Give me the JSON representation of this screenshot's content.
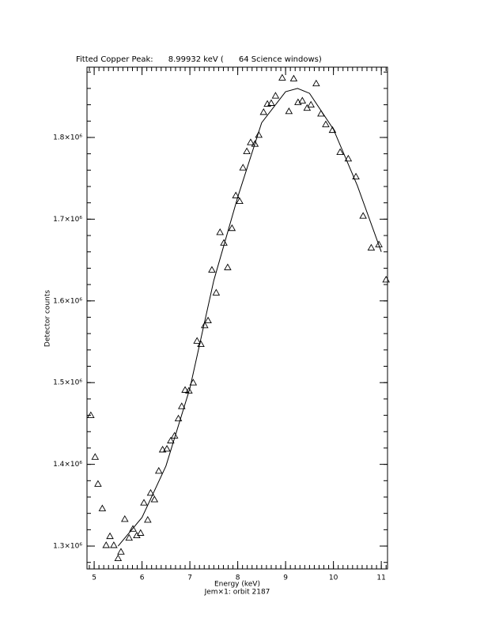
{
  "chart_data": {
    "type": "scatter",
    "title": "Fitted Copper Peak:      8.99932 keV (      64 Science windows)",
    "x_label": "Energy (keV)",
    "subtitle": "Jem×1: orbit 2187",
    "y_label": "Detector counts",
    "xlim": [
      4.85,
      11.13
    ],
    "ylim": [
      1272000,
      1886000
    ],
    "xticks": [
      5,
      6,
      7,
      8,
      9,
      10,
      11
    ],
    "yticks": [
      {
        "value": 1300000,
        "label": "1.3×10⁶"
      },
      {
        "value": 1400000,
        "label": "1.4×10⁶"
      },
      {
        "value": 1500000,
        "label": "1.5×10⁶"
      },
      {
        "value": 1600000,
        "label": "1.6×10⁶"
      },
      {
        "value": 1700000,
        "label": "1.7×10⁶"
      },
      {
        "value": 1800000,
        "label": "1.8×10⁶"
      }
    ],
    "series": [
      {
        "type": "scatter",
        "marker": "triangle",
        "color": "#000000",
        "x": [
          4.93,
          5.02,
          5.08,
          5.17,
          5.25,
          5.33,
          5.41,
          5.5,
          5.56,
          5.64,
          5.73,
          5.81,
          5.89,
          5.97,
          6.04,
          6.12,
          6.18,
          6.26,
          6.35,
          6.43,
          6.52,
          6.6,
          6.68,
          6.76,
          6.83,
          6.9,
          6.98,
          7.07,
          7.15,
          7.23,
          7.31,
          7.38,
          7.46,
          7.55,
          7.63,
          7.71,
          7.79,
          7.88,
          7.96,
          8.04,
          8.11,
          8.19,
          8.27,
          8.36,
          8.44,
          8.54,
          8.62,
          8.7,
          8.79,
          8.93,
          9.07,
          9.17,
          9.26,
          9.35,
          9.45,
          9.53,
          9.64,
          9.74,
          9.84,
          9.98,
          10.14,
          10.31,
          10.47,
          10.62,
          10.79,
          10.95,
          11.1
        ],
        "values": [
          1460000,
          1409000,
          1376000,
          1346000,
          1301000,
          1312000,
          1301000,
          1285000,
          1293000,
          1333000,
          1310000,
          1321000,
          1313000,
          1316000,
          1353000,
          1332000,
          1365000,
          1357000,
          1392000,
          1418000,
          1419000,
          1429000,
          1435000,
          1456000,
          1471000,
          1491000,
          1490000,
          1500000,
          1551000,
          1547000,
          1570000,
          1576000,
          1638000,
          1610000,
          1684000,
          1671000,
          1641000,
          1689000,
          1729000,
          1722000,
          1763000,
          1783000,
          1794000,
          1792000,
          1803000,
          1831000,
          1841000,
          1842000,
          1851000,
          1873000,
          1832000,
          1872000,
          1843000,
          1845000,
          1836000,
          1840000,
          1866000,
          1829000,
          1816000,
          1809000,
          1782000,
          1774000,
          1752000,
          1704000,
          1665000,
          1669000,
          1626000
        ]
      },
      {
        "type": "line",
        "color": "#000000",
        "x": [
          5.5,
          6.0,
          6.5,
          7.0,
          7.5,
          8.0,
          8.5,
          9.0,
          9.25,
          9.5,
          10.0,
          10.5,
          11.0
        ],
        "values": [
          1300000,
          1335000,
          1398000,
          1493000,
          1625000,
          1727000,
          1818000,
          1856000,
          1860000,
          1854000,
          1810000,
          1741000,
          1660000
        ]
      }
    ]
  }
}
